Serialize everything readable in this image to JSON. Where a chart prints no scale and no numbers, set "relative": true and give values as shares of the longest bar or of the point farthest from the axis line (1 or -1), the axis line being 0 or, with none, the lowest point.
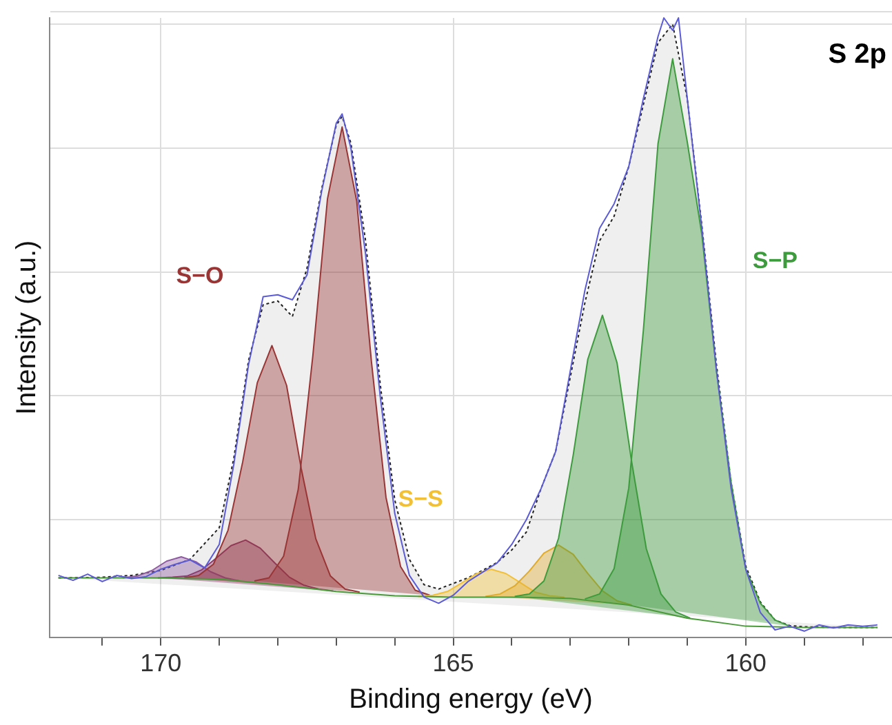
{
  "chart_data": {
    "type": "line",
    "title": "S 2p",
    "xlabel": "Binding energy (eV)",
    "ylabel": "Intensity (a.u.)",
    "relative": true,
    "grid": true,
    "marker": "none",
    "xlim": [
      171.9,
      157.5
    ],
    "xticks": [
      {
        "value": 171,
        "label": null
      },
      170,
      {
        "value": 169,
        "label": null
      },
      {
        "value": 168,
        "label": null
      },
      {
        "value": 167,
        "label": null
      },
      {
        "value": 166,
        "label": null
      },
      165,
      {
        "value": 164,
        "label": null
      },
      {
        "value": 163,
        "label": null
      },
      {
        "value": 162,
        "label": null
      },
      {
        "value": 161,
        "label": null
      },
      160,
      {
        "value": 159,
        "label": null
      },
      {
        "value": 158,
        "label": null
      }
    ],
    "series": [
      {
        "type": "line",
        "color": "#4a9a3a",
        "x": [
          171.75,
          170,
          169,
          168,
          167,
          166,
          165,
          164,
          163,
          162,
          161,
          160,
          159,
          157.75
        ],
        "values": [
          0.096,
          0.096,
          0.094,
          0.085,
          0.074,
          0.067,
          0.065,
          0.065,
          0.063,
          0.052,
          0.031,
          0.018,
          0.016,
          0.016
        ]
      },
      {
        "type": "area",
        "color": "#222222",
        "line_style": "dotted",
        "x": [
          171.75,
          171,
          170.5,
          170,
          169.5,
          169,
          168.75,
          168.5,
          168.25,
          168,
          167.75,
          167.5,
          167.25,
          167,
          166.9,
          166.75,
          166.5,
          166.25,
          166,
          165.75,
          165.5,
          165.25,
          165,
          164.75,
          164.5,
          164.25,
          164,
          163.75,
          163.5,
          163.25,
          163,
          162.75,
          162.5,
          162.25,
          162,
          161.75,
          161.5,
          161.25,
          161,
          160.75,
          160.5,
          160.25,
          160,
          159.75,
          159.5,
          159.25,
          159,
          158.5,
          157.75
        ],
        "values": [
          0.096,
          0.097,
          0.1,
          0.108,
          0.126,
          0.177,
          0.29,
          0.447,
          0.537,
          0.543,
          0.518,
          0.596,
          0.724,
          0.827,
          0.841,
          0.798,
          0.641,
          0.41,
          0.222,
          0.126,
          0.085,
          0.078,
          0.087,
          0.096,
          0.108,
          0.121,
          0.141,
          0.17,
          0.24,
          0.3,
          0.42,
          0.54,
          0.64,
          0.68,
          0.76,
          0.86,
          0.96,
          0.99,
          0.87,
          0.665,
          0.44,
          0.25,
          0.115,
          0.057,
          0.028,
          0.019,
          0.017,
          0.016,
          0.016
        ]
      },
      {
        "type": "area",
        "color": "#8e5aa0",
        "x": [
          170.65,
          170.4,
          170.15,
          169.9,
          169.65,
          169.4,
          169.15,
          168.9,
          168.65
        ],
        "values": [
          0.096,
          0.099,
          0.108,
          0.123,
          0.13,
          0.122,
          0.106,
          0.096,
          0.091
        ]
      },
      {
        "type": "area",
        "color": "#8a3c6c",
        "x": [
          170.05,
          169.8,
          169.55,
          169.3,
          169.05,
          168.8,
          168.55,
          168.3,
          168.05,
          167.8,
          167.55,
          167.3,
          167.05
        ],
        "values": [
          0.096,
          0.097,
          0.099,
          0.109,
          0.128,
          0.148,
          0.157,
          0.144,
          0.12,
          0.097,
          0.084,
          0.078,
          0.075
        ]
      },
      {
        "type": "area",
        "name": "S−O",
        "color": "#9a3535",
        "x": [
          169.6,
          169.35,
          169.1,
          168.85,
          168.6,
          168.35,
          168.1,
          167.85,
          167.6,
          167.35,
          167.1,
          166.85,
          166.6
        ],
        "values": [
          0.096,
          0.1,
          0.118,
          0.173,
          0.283,
          0.411,
          0.471,
          0.407,
          0.273,
          0.159,
          0.099,
          0.078,
          0.073
        ]
      },
      {
        "type": "area",
        "color": "#9a3535",
        "x": [
          168.4,
          168.15,
          167.9,
          167.65,
          167.4,
          167.15,
          166.9,
          166.65,
          166.4,
          166.15,
          165.9,
          165.65,
          165.4
        ],
        "values": [
          0.091,
          0.096,
          0.131,
          0.239,
          0.455,
          0.708,
          0.824,
          0.704,
          0.446,
          0.226,
          0.114,
          0.076,
          0.068
        ]
      },
      {
        "type": "area",
        "name": "S−S",
        "color": "#f2c037",
        "x": [
          165.6,
          165.35,
          165.1,
          164.85,
          164.6,
          164.35,
          164.1,
          163.85,
          163.6,
          163.35,
          163.1
        ],
        "values": [
          0.066,
          0.068,
          0.074,
          0.088,
          0.103,
          0.11,
          0.103,
          0.088,
          0.073,
          0.067,
          0.065
        ]
      },
      {
        "type": "area",
        "color": "#e0aa2a",
        "x": [
          164.45,
          164.2,
          163.95,
          163.7,
          163.45,
          163.2,
          162.95,
          162.7,
          162.45,
          162.2,
          161.95
        ],
        "values": [
          0.066,
          0.07,
          0.083,
          0.107,
          0.136,
          0.149,
          0.134,
          0.103,
          0.075,
          0.059,
          0.052
        ]
      },
      {
        "type": "area",
        "color": "#3d9a3d",
        "x": [
          163.95,
          163.7,
          163.45,
          163.2,
          162.95,
          162.7,
          162.45,
          162.2,
          161.95,
          161.7,
          161.45,
          161.2,
          160.95
        ],
        "values": [
          0.066,
          0.07,
          0.091,
          0.16,
          0.294,
          0.449,
          0.52,
          0.443,
          0.283,
          0.143,
          0.07,
          0.041,
          0.031
        ]
      },
      {
        "type": "area",
        "name": "S−P",
        "color": "#3d9a3d",
        "x": [
          162.75,
          162.5,
          162.25,
          162,
          161.75,
          161.5,
          161.25,
          161,
          160.75,
          160.5,
          160.25,
          160,
          159.75,
          159.5,
          159.25
        ],
        "values": [
          0.062,
          0.07,
          0.111,
          0.241,
          0.496,
          0.797,
          0.934,
          0.8,
          0.65,
          0.43,
          0.25,
          0.11,
          0.055,
          0.028,
          0.018
        ]
      },
      {
        "type": "line",
        "color": "#5b5bd6",
        "x": [
          171.75,
          171.5,
          171.25,
          171,
          170.75,
          170.5,
          170.25,
          170,
          169.75,
          169.5,
          169.25,
          169,
          168.75,
          168.5,
          168.25,
          168,
          167.75,
          167.5,
          167.25,
          167,
          166.9,
          166.75,
          166.5,
          166.25,
          166,
          165.75,
          165.5,
          165.25,
          165,
          164.75,
          164.5,
          164.25,
          164,
          163.75,
          163.5,
          163.25,
          163,
          162.75,
          162.5,
          162.25,
          162,
          161.75,
          161.5,
          161.4,
          161.25,
          161.15,
          161,
          160.75,
          160.5,
          160.25,
          160,
          159.75,
          159.5,
          159.25,
          159,
          158.75,
          158.5,
          158.25,
          158,
          157.75
        ],
        "values": [
          0.1,
          0.092,
          0.102,
          0.09,
          0.1,
          0.095,
          0.098,
          0.11,
          0.118,
          0.125,
          0.112,
          0.15,
          0.28,
          0.44,
          0.55,
          0.553,
          0.545,
          0.585,
          0.72,
          0.83,
          0.845,
          0.79,
          0.62,
          0.39,
          0.2,
          0.1,
          0.065,
          0.055,
          0.068,
          0.09,
          0.105,
          0.12,
          0.15,
          0.19,
          0.24,
          0.3,
          0.43,
          0.56,
          0.66,
          0.7,
          0.76,
          0.87,
          0.97,
          1.0,
          0.98,
          1.0,
          0.87,
          0.66,
          0.43,
          0.24,
          0.11,
          0.04,
          0.012,
          0.018,
          0.01,
          0.02,
          0.015,
          0.02,
          0.018,
          0.02
        ]
      }
    ]
  }
}
